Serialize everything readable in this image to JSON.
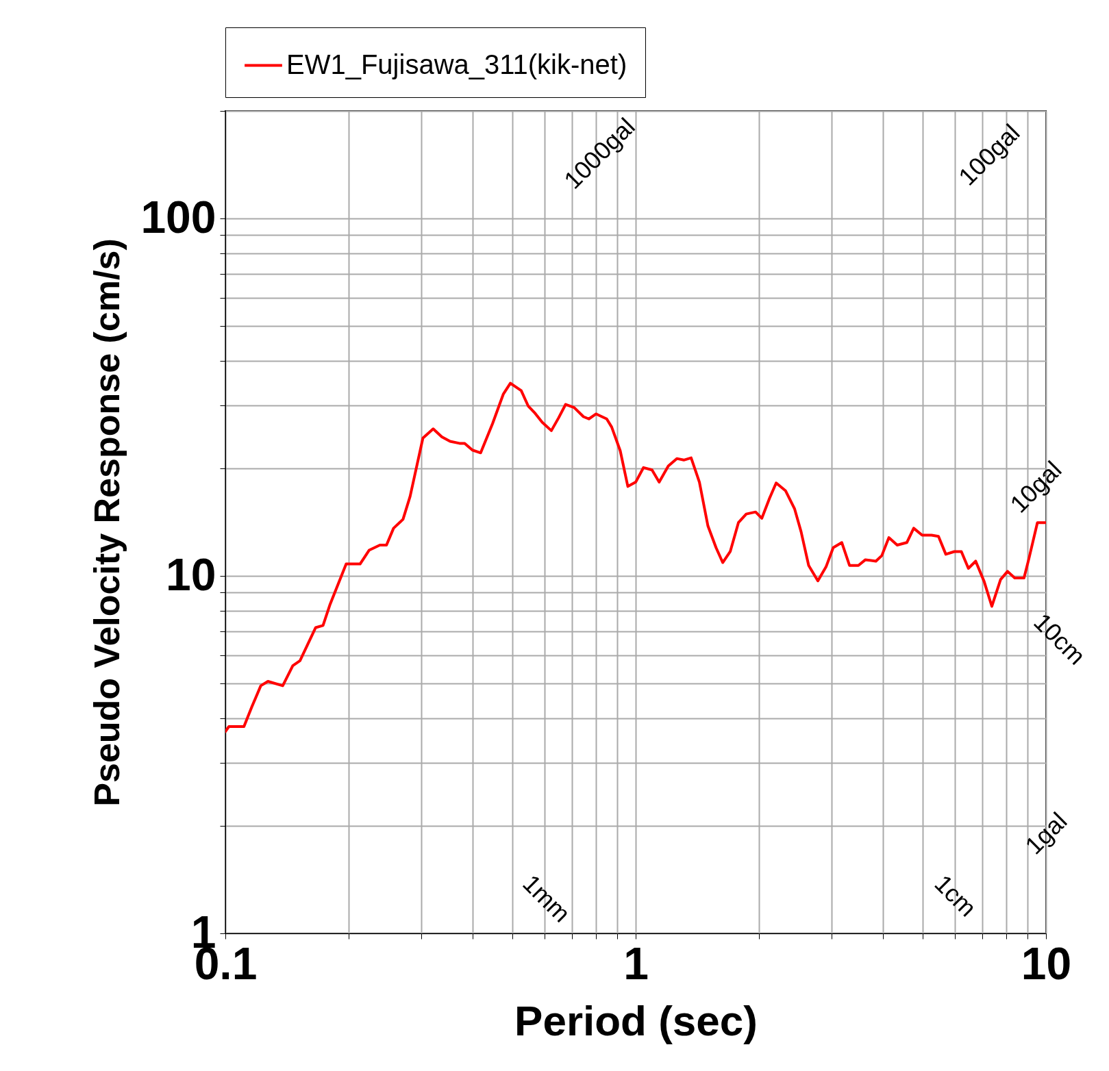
{
  "chart_data": {
    "type": "line",
    "xlabel": "Period (sec)",
    "ylabel": "Pseudo Velocity Response (cm/s)",
    "log": "xy",
    "grid": true,
    "legend": "top",
    "xlim": [
      0.1,
      10
    ],
    "ylim": [
      1,
      200
    ],
    "xticks": [
      0.1,
      {
        "value": 0.2,
        "label": null
      },
      {
        "value": 0.3,
        "label": null
      },
      {
        "value": 0.4,
        "label": null
      },
      {
        "value": 0.5,
        "label": null
      },
      {
        "value": 0.6,
        "label": null
      },
      {
        "value": 0.7,
        "label": null
      },
      {
        "value": 0.8,
        "label": null
      },
      {
        "value": 0.9,
        "label": null
      },
      1,
      {
        "value": 2,
        "label": null
      },
      {
        "value": 3,
        "label": null
      },
      {
        "value": 4,
        "label": null
      },
      {
        "value": 5,
        "label": null
      },
      {
        "value": 6,
        "label": null
      },
      {
        "value": 7,
        "label": null
      },
      {
        "value": 8,
        "label": null
      },
      {
        "value": 9,
        "label": null
      },
      10
    ],
    "yticks": [
      1,
      {
        "value": 2,
        "label": null
      },
      {
        "value": 3,
        "label": null
      },
      {
        "value": 4,
        "label": null
      },
      {
        "value": 5,
        "label": null
      },
      {
        "value": 6,
        "label": null
      },
      {
        "value": 7,
        "label": null
      },
      {
        "value": 8,
        "label": null
      },
      {
        "value": 9,
        "label": null
      },
      10,
      {
        "value": 20,
        "label": null
      },
      {
        "value": 30,
        "label": null
      },
      {
        "value": 40,
        "label": null
      },
      {
        "value": 50,
        "label": null
      },
      {
        "value": 60,
        "label": null
      },
      {
        "value": 70,
        "label": null
      },
      {
        "value": 80,
        "label": null
      },
      {
        "value": 90,
        "label": null
      },
      100,
      {
        "value": 200,
        "label": null
      }
    ],
    "annotations": [
      "1000gal",
      "100gal",
      "10gal",
      "10cm",
      "1gal",
      "1mm",
      "1cm"
    ],
    "series": [
      {
        "name": "EW1_Fujisawa_311(kik-net)",
        "color": "#ff0000",
        "x": [
          0.1,
          0.102,
          0.111,
          0.116,
          0.122,
          0.127,
          0.138,
          0.146,
          0.152,
          0.166,
          0.173,
          0.18,
          0.197,
          0.213,
          0.224,
          0.238,
          0.247,
          0.257,
          0.271,
          0.282,
          0.303,
          0.321,
          0.337,
          0.353,
          0.372,
          0.383,
          0.4,
          0.419,
          0.448,
          0.476,
          0.495,
          0.526,
          0.547,
          0.569,
          0.592,
          0.623,
          0.649,
          0.675,
          0.708,
          0.746,
          0.769,
          0.801,
          0.85,
          0.874,
          0.917,
          0.957,
          1.0,
          1.045,
          1.096,
          1.141,
          1.201,
          1.26,
          1.31,
          1.365,
          1.43,
          1.5,
          1.57,
          1.63,
          1.7,
          1.78,
          1.86,
          1.96,
          2.03,
          2.12,
          2.2,
          2.32,
          2.44,
          2.53,
          2.64,
          2.78,
          2.91,
          3.03,
          3.18,
          3.32,
          3.49,
          3.63,
          3.85,
          3.98,
          4.14,
          4.34,
          4.58,
          4.76,
          4.99,
          5.26,
          5.47,
          5.7,
          5.98,
          6.22,
          6.47,
          6.74,
          7.07,
          7.38,
          7.75,
          8.06,
          8.39,
          8.84,
          9.09,
          9.53,
          10
        ],
        "values": [
          3.67,
          3.79,
          3.79,
          4.3,
          4.93,
          5.07,
          4.93,
          5.61,
          5.79,
          7.17,
          7.27,
          8.33,
          10.8,
          10.8,
          11.8,
          12.2,
          12.2,
          13.6,
          14.4,
          16.7,
          24.3,
          25.8,
          24.5,
          23.8,
          23.5,
          23.5,
          22.5,
          22.1,
          26.7,
          32.3,
          34.6,
          33.0,
          29.9,
          28.5,
          26.9,
          25.5,
          27.7,
          30.2,
          29.6,
          27.9,
          27.5,
          28.4,
          27.5,
          26.1,
          22.4,
          17.8,
          18.3,
          20.1,
          19.8,
          18.3,
          20.3,
          21.3,
          21.1,
          21.4,
          18.3,
          13.8,
          12.0,
          10.9,
          11.7,
          14.1,
          14.9,
          15.1,
          14.5,
          16.5,
          18.2,
          17.3,
          15.4,
          13.3,
          10.7,
          9.69,
          10.6,
          12.0,
          12.4,
          10.7,
          10.7,
          11.1,
          11.0,
          11.4,
          12.8,
          12.2,
          12.4,
          13.6,
          13.0,
          13.0,
          12.9,
          11.5,
          11.7,
          11.7,
          10.5,
          11.0,
          9.64,
          8.22,
          9.77,
          10.3,
          9.87,
          9.87,
          11.2,
          14.1,
          14.1
        ]
      }
    ]
  }
}
